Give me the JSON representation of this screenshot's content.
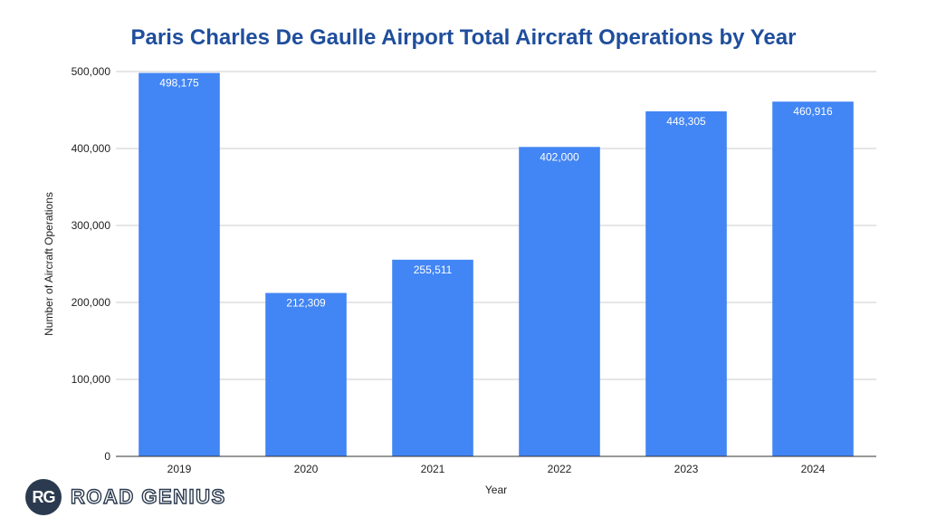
{
  "chart_data": {
    "type": "bar",
    "title": "Paris Charles De Gaulle Airport Total Aircraft Operations by Year",
    "xlabel": "Year",
    "ylabel": "Number of Aircraft Operations",
    "categories": [
      "2019",
      "2020",
      "2021",
      "2022",
      "2023",
      "2024"
    ],
    "values": [
      498175,
      212309,
      255511,
      402000,
      448305,
      460916
    ],
    "value_labels": [
      "498,175",
      "212,309",
      "255,511",
      "402,000",
      "448,305",
      "460,916"
    ],
    "ylim": [
      0,
      500000
    ],
    "yticks": [
      0,
      100000,
      200000,
      300000,
      400000,
      500000
    ],
    "ytick_labels": [
      "0",
      "100,000",
      "200,000",
      "300,000",
      "400,000",
      "500,000"
    ],
    "grid": true,
    "legend": "none",
    "bar_color": "#4285f4"
  },
  "branding": {
    "logo_initials": "RG",
    "logo_name": "ROAD GENIUS"
  }
}
